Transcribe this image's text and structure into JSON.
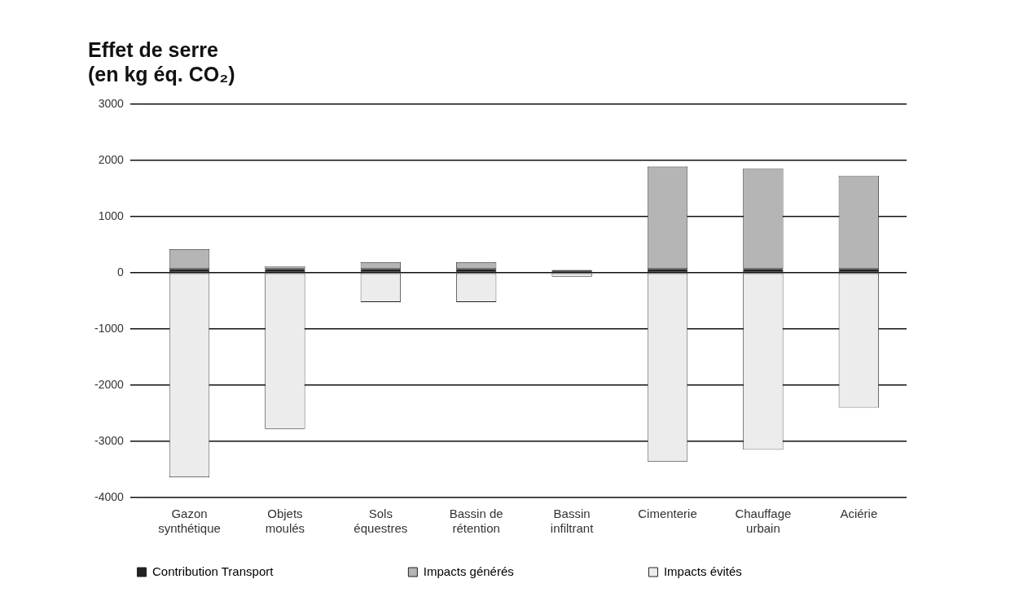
{
  "chart_data": {
    "type": "bar",
    "title": "Effet de serre\n(en kg éq. CO₂)",
    "categories": [
      "Gazon synthétique",
      "Objets moulés",
      "Sols équestres",
      "Bassin de rétention",
      "Bassin infiltrant",
      "Cimenterie",
      "Chauffage urbain",
      "Aciérie"
    ],
    "stacked": true,
    "series": [
      {
        "name": "Contribution Transport",
        "color": "#222222",
        "values": [
          70,
          70,
          70,
          70,
          50,
          70,
          70,
          70
        ]
      },
      {
        "name": "Impacts générés",
        "color": "#b5b5b5",
        "values": [
          350,
          50,
          120,
          120,
          0,
          1820,
          1790,
          1660
        ]
      },
      {
        "name": "Impacts évités",
        "color": "#ececec",
        "values": [
          -3640,
          -2780,
          -520,
          -520,
          -70,
          -3360,
          -3150,
          -2400
        ]
      }
    ],
    "ylim": [
      -4000,
      3000
    ],
    "yticks": [
      -4000,
      -3000,
      -2000,
      -1000,
      0,
      1000,
      2000,
      3000
    ],
    "grid": "y",
    "legend": "bottom"
  }
}
